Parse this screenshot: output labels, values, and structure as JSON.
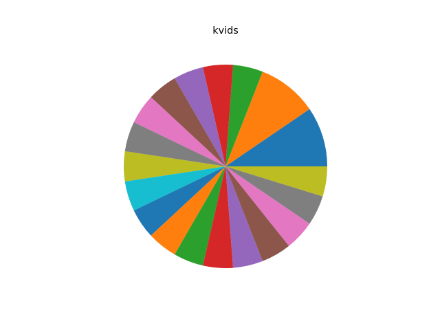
{
  "chart_data": {
    "type": "pie",
    "title": "kvids",
    "start_angle_deg": 0,
    "direction": "counterclockwise",
    "legend": "none",
    "values": [
      2,
      2,
      1,
      1,
      1,
      1,
      1,
      1,
      1,
      1,
      1,
      1,
      1,
      1,
      1,
      1,
      1,
      1,
      1
    ],
    "colors": [
      "#1f77b4",
      "#ff7f0e",
      "#2ca02c",
      "#d62728",
      "#9467bd",
      "#8c564b",
      "#e377c2",
      "#7f7f7f",
      "#bcbd22",
      "#17becf",
      "#1f77b4",
      "#ff7f0e",
      "#2ca02c",
      "#d62728",
      "#9467bd",
      "#8c564b",
      "#e377c2",
      "#7f7f7f",
      "#bcbd22"
    ]
  }
}
